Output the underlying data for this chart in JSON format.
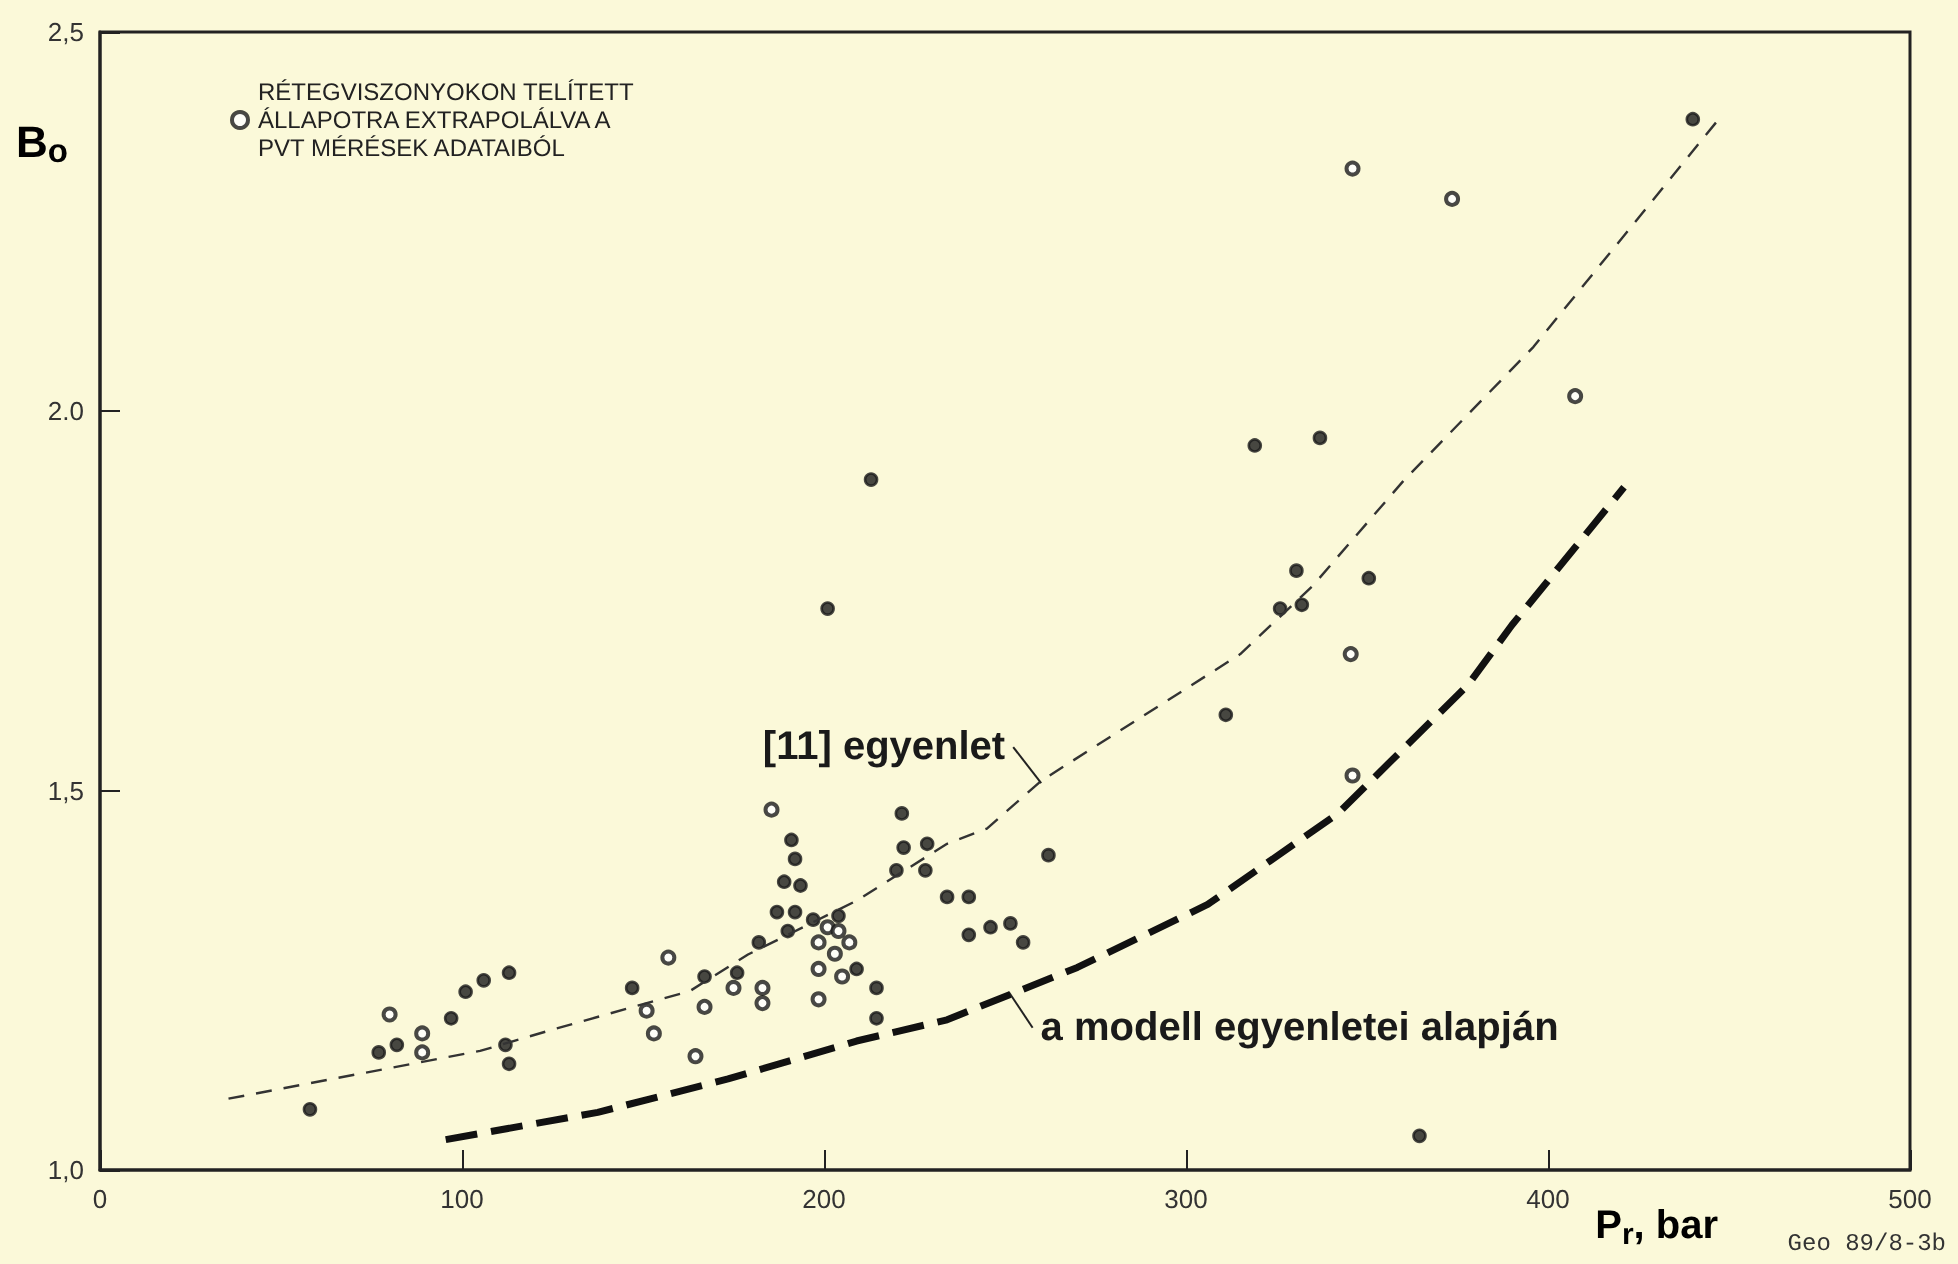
{
  "chart_data": {
    "type": "scatter",
    "xlabel": "P$_{r}$, bar",
    "ylabel": "B$_{o}$",
    "xlim": [
      0,
      500
    ],
    "xticks": [
      0,
      100,
      200,
      300,
      400,
      500
    ],
    "ylim": [
      1.0,
      2.5
    ],
    "yticks": [
      {
        "value": 1.0,
        "label": "1,0"
      },
      {
        "value": 1.5,
        "label": "1,5"
      },
      {
        "value": 2.0,
        "label": "2.0"
      },
      {
        "value": 2.5,
        "label": "2,5"
      }
    ],
    "grid": false,
    "legend": "top left",
    "series": [
      {
        "marker": "circle",
        "color": "#1a1a1a",
        "x": [
          58,
          77,
          82,
          97,
          101,
          106,
          113,
          112,
          113,
          147,
          167,
          176,
          182,
          187,
          189,
          191,
          192,
          193.5,
          192,
          190,
          197,
          204,
          209,
          214.5,
          214.5,
          220,
          221.5,
          222,
          228.5,
          228,
          234,
          240,
          240,
          246,
          251.5,
          255,
          262,
          311,
          364.5,
          319,
          337,
          330.5,
          326,
          332,
          350.5,
          440,
          213,
          201
        ],
        "values": [
          1.08,
          1.155,
          1.165,
          1.2,
          1.235,
          1.25,
          1.26,
          1.165,
          1.14,
          1.24,
          1.255,
          1.26,
          1.3,
          1.34,
          1.38,
          1.435,
          1.41,
          1.375,
          1.34,
          1.315,
          1.33,
          1.335,
          1.265,
          1.24,
          1.2,
          1.395,
          1.47,
          1.425,
          1.43,
          1.395,
          1.36,
          1.36,
          1.31,
          1.32,
          1.325,
          1.3,
          1.415,
          1.6,
          1.045,
          1.955,
          1.965,
          1.79,
          1.74,
          1.745,
          1.78,
          2.385,
          1.91,
          1.74
        ]
      },
      {
        "marker": "open circle",
        "color": "#1a1a1a",
        "name": "RÉTEGVISZONYOKON TELÍTETT\nÁLLAPOTRA EXTRAPOLÁLVA A\nPVT MÉRÉSEK ADATAIBÓL",
        "x": [
          80,
          89,
          89,
          157,
          151,
          153,
          164.5,
          167,
          175,
          183,
          183,
          185.5,
          198.5,
          201,
          204,
          207,
          203,
          198.5,
          205,
          198.5,
          346,
          373.5,
          407.5,
          345.5,
          346
        ],
        "values": [
          1.205,
          1.18,
          1.155,
          1.28,
          1.21,
          1.18,
          1.15,
          1.215,
          1.24,
          1.24,
          1.22,
          1.475,
          1.3,
          1.32,
          1.315,
          1.3,
          1.285,
          1.265,
          1.255,
          1.225,
          2.32,
          2.28,
          2.02,
          1.68,
          1.52
        ]
      },
      {
        "type": "line",
        "line_style": "dashed",
        "color": "#333333",
        "x": [
          35.5,
          105,
          125,
          163,
          179,
          209,
          234,
          245,
          260,
          315,
          335,
          360,
          396,
          448
        ],
        "values": [
          1.094,
          1.157,
          1.185,
          1.236,
          1.284,
          1.355,
          1.43,
          1.45,
          1.513,
          1.68,
          1.77,
          1.908,
          2.085,
          2.39
        ]
      },
      {
        "type": "line",
        "line_style": "dashed",
        "color": "#111111",
        "x": [
          95.5,
          137.5,
          173.5,
          209,
          234,
          270,
          306,
          342,
          378,
          390,
          421
        ],
        "values": [
          1.04,
          1.076,
          1.12,
          1.17,
          1.198,
          1.267,
          1.35,
          1.47,
          1.64,
          1.718,
          1.9
        ]
      }
    ],
    "annotations": [
      {
        "text": "[11] egyenlet",
        "x": 260,
        "y": 1.51
      },
      {
        "text": "a modell egyenletei alapján",
        "x": 251,
        "y": 1.235
      },
      "Geo 89/8-3b"
    ]
  }
}
